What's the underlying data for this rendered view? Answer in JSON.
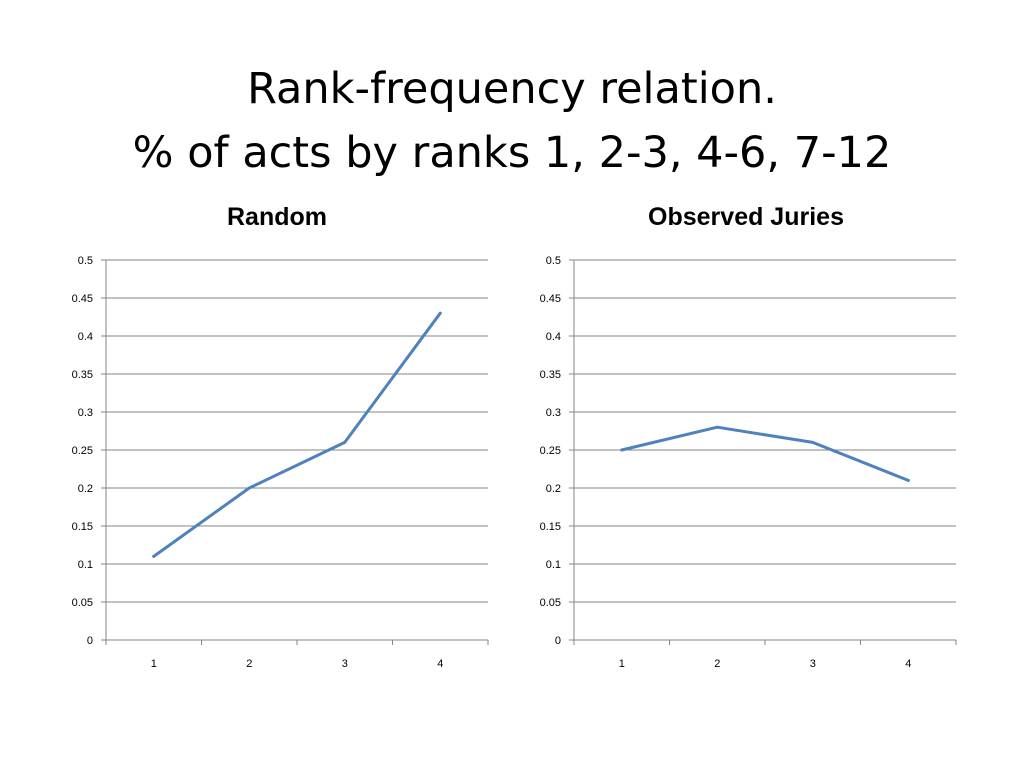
{
  "title": {
    "line1": "Rank-frequency relation.",
    "line2": "% of acts by ranks 1, 2-3, 4-6, 7-12"
  },
  "colors": {
    "series_line": "#4f81bd",
    "gridline": "#868686",
    "axis": "#868686"
  },
  "chart_data": [
    {
      "type": "line",
      "title": "Random",
      "xlabel": "",
      "ylabel": "",
      "categories": [
        "1",
        "2",
        "3",
        "4"
      ],
      "series": [
        {
          "values": [
            0.11,
            0.2,
            0.26,
            0.43
          ]
        }
      ],
      "ylim": [
        0,
        0.5
      ],
      "yticks": [
        "0",
        "0.05",
        "0.1",
        "0.15",
        "0.2",
        "0.25",
        "0.3",
        "0.35",
        "0.4",
        "0.45",
        "0.5"
      ],
      "grid": true,
      "legend": "none"
    },
    {
      "type": "line",
      "title": "Observed Juries",
      "xlabel": "",
      "ylabel": "",
      "categories": [
        "1",
        "2",
        "3",
        "4"
      ],
      "series": [
        {
          "values": [
            0.25,
            0.28,
            0.26,
            0.21
          ]
        }
      ],
      "ylim": [
        0,
        0.5
      ],
      "yticks": [
        "0",
        "0.05",
        "0.1",
        "0.15",
        "0.2",
        "0.25",
        "0.3",
        "0.35",
        "0.4",
        "0.45",
        "0.5"
      ],
      "grid": true,
      "legend": "none"
    }
  ]
}
